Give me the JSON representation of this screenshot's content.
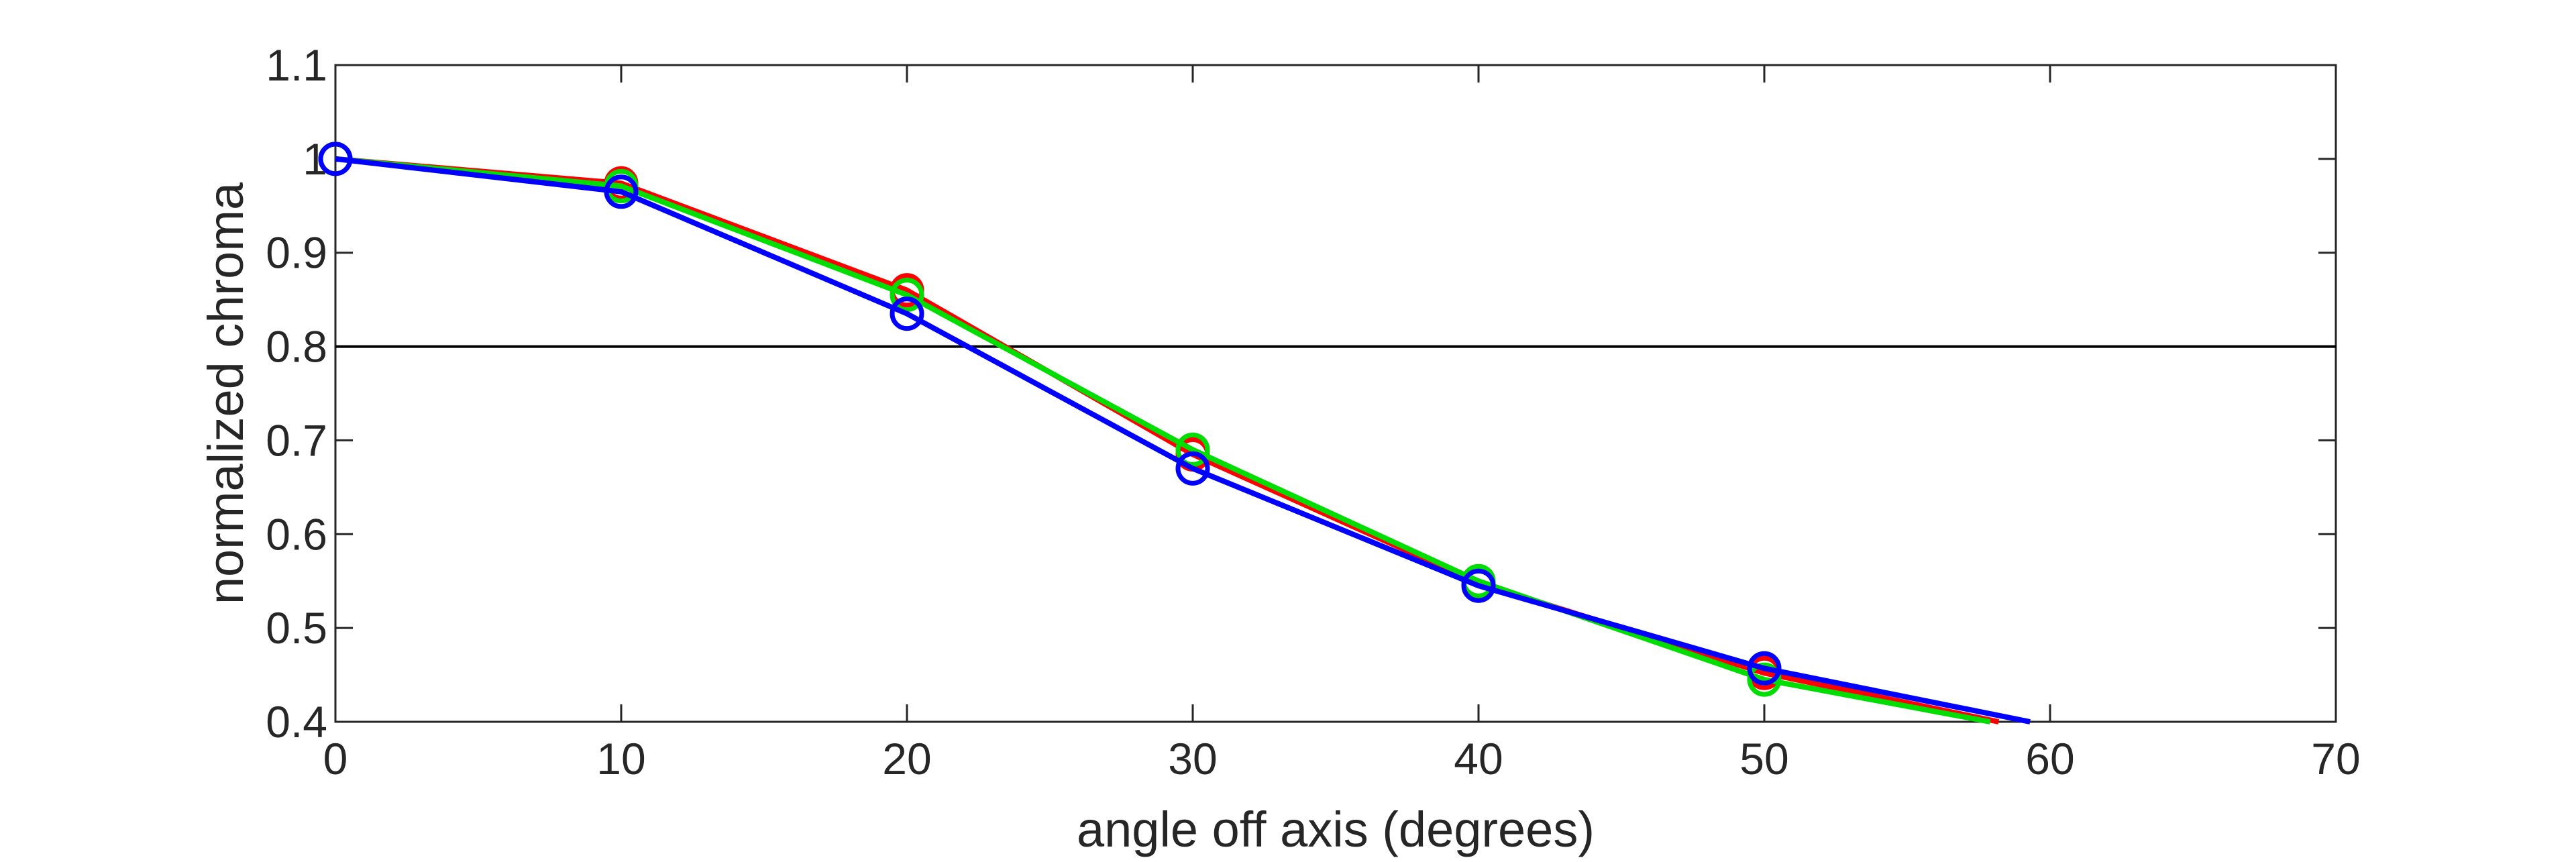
{
  "chart_data": {
    "type": "line",
    "title": "",
    "xlabel": "angle off axis (degrees)",
    "ylabel": "normalized chroma",
    "xlim": [
      0,
      70
    ],
    "ylim": [
      0.4,
      1.1
    ],
    "xticks": [
      0,
      10,
      20,
      30,
      40,
      50,
      60,
      70
    ],
    "xtick_labels": [
      "0",
      "10",
      "20",
      "30",
      "40",
      "50",
      "60",
      "70"
    ],
    "yticks": [
      0.4,
      0.5,
      0.6,
      0.7,
      0.8,
      0.9,
      1.0,
      1.1
    ],
    "ytick_labels": [
      "0.4",
      "0.5",
      "0.6",
      "0.7",
      "0.8",
      "0.9",
      "1",
      "1.1"
    ],
    "grid": false,
    "legend": "none",
    "reference_line": {
      "y": 0.8,
      "color": "#000000"
    },
    "series": [
      {
        "color": "#ff0000",
        "markers": "circle",
        "x": [
          0,
          10,
          20,
          30,
          40,
          50,
          58.2
        ],
        "y": [
          1.0,
          0.974,
          0.86,
          0.685,
          0.548,
          0.452,
          0.4
        ]
      },
      {
        "color": "#00dd00",
        "markers": "circle",
        "x": [
          0,
          10,
          20,
          30,
          40,
          50,
          57.9
        ],
        "y": [
          1.0,
          0.971,
          0.855,
          0.69,
          0.55,
          0.445,
          0.4
        ]
      },
      {
        "color": "#0000ff",
        "markers": "circle",
        "x": [
          0,
          10,
          20,
          30,
          40,
          50,
          59.3
        ],
        "y": [
          1.0,
          0.965,
          0.835,
          0.67,
          0.545,
          0.457,
          0.4
        ]
      }
    ]
  }
}
